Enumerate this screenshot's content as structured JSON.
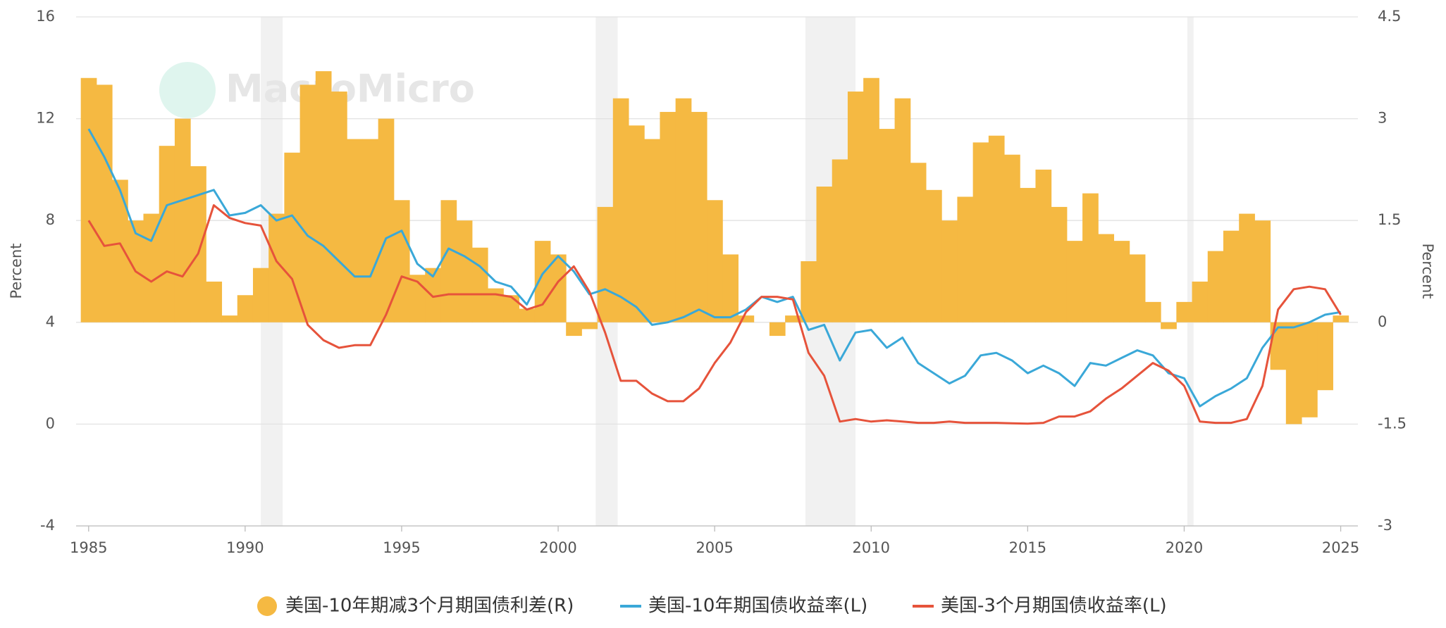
{
  "chart_data": {
    "type": "line",
    "watermark": "MacroMicro",
    "y_label": "Percent",
    "y2_label": "Percent",
    "xlim": [
      1984.6,
      2025.55
    ],
    "xticks": [
      1985,
      1990,
      1995,
      2000,
      2005,
      2010,
      2015,
      2020,
      2025
    ],
    "ylim": [
      -4,
      16
    ],
    "yticks": [
      -4,
      0,
      4,
      8,
      12,
      16
    ],
    "y2lim": [
      -3,
      4.5
    ],
    "y2ticks": [
      -3,
      -1.5,
      0,
      1.5,
      3,
      4.5
    ],
    "grid": true,
    "shaded_periods": [
      [
        1990.5,
        1991.2
      ],
      [
        2001.2,
        2001.9
      ],
      [
        2007.9,
        2009.5
      ],
      [
        2020.1,
        2020.3
      ]
    ],
    "x": [
      1985,
      1985.5,
      1986,
      1986.5,
      1987,
      1987.5,
      1988,
      1988.5,
      1989,
      1989.5,
      1990,
      1990.5,
      1991,
      1991.5,
      1992,
      1992.5,
      1993,
      1993.5,
      1994,
      1994.5,
      1995,
      1995.5,
      1996,
      1996.5,
      1997,
      1997.5,
      1998,
      1998.5,
      1999,
      1999.5,
      2000,
      2000.5,
      2001,
      2001.5,
      2002,
      2002.5,
      2003,
      2003.5,
      2004,
      2004.5,
      2005,
      2005.5,
      2006,
      2006.5,
      2007,
      2007.5,
      2008,
      2008.5,
      2009,
      2009.5,
      2010,
      2010.5,
      2011,
      2011.5,
      2012,
      2012.5,
      2013,
      2013.5,
      2014,
      2014.5,
      2015,
      2015.5,
      2016,
      2016.5,
      2017,
      2017.5,
      2018,
      2018.5,
      2019,
      2019.5,
      2020,
      2020.5,
      2021,
      2021.5,
      2022,
      2022.5,
      2023,
      2023.5,
      2024,
      2024.5,
      2025
    ],
    "series": [
      {
        "name": "美国-10年期减3个月期国债利差(R)",
        "type": "bar",
        "axis": "y2",
        "color": "#f5b942",
        "values": [
          3.6,
          3.5,
          2.1,
          1.5,
          1.6,
          2.6,
          3.0,
          2.3,
          0.6,
          0.1,
          0.4,
          0.8,
          1.6,
          2.5,
          3.5,
          3.7,
          3.4,
          2.7,
          2.7,
          3.0,
          1.8,
          0.7,
          0.8,
          1.8,
          1.5,
          1.1,
          0.5,
          0.4,
          0.2,
          1.2,
          1.0,
          -0.2,
          -0.1,
          1.7,
          3.3,
          2.9,
          2.7,
          3.1,
          3.3,
          3.1,
          1.8,
          1.0,
          0.1,
          0.0,
          -0.2,
          0.1,
          0.9,
          2.0,
          2.4,
          3.4,
          3.6,
          2.85,
          3.3,
          2.35,
          1.95,
          1.5,
          1.85,
          2.65,
          2.75,
          2.47,
          1.98,
          2.25,
          1.7,
          1.2,
          1.9,
          1.3,
          1.2,
          1.0,
          0.3,
          -0.1,
          0.3,
          0.6,
          1.05,
          1.35,
          1.6,
          1.5,
          -0.7,
          -1.5,
          -1.4,
          -1.0,
          0.1
        ]
      },
      {
        "name": "美国-10年期国债收益率(L)",
        "type": "line",
        "axis": "y",
        "color": "#3aa8d8",
        "values": [
          11.6,
          10.5,
          9.2,
          7.5,
          7.2,
          8.6,
          8.8,
          9.0,
          9.2,
          8.2,
          8.3,
          8.6,
          8.0,
          8.2,
          7.4,
          7.0,
          6.4,
          5.8,
          5.8,
          7.3,
          7.6,
          6.3,
          5.8,
          6.9,
          6.6,
          6.2,
          5.6,
          5.4,
          4.7,
          5.9,
          6.6,
          6.0,
          5.1,
          5.3,
          5.0,
          4.6,
          3.9,
          4.0,
          4.2,
          4.5,
          4.2,
          4.2,
          4.5,
          5.0,
          4.8,
          5.0,
          3.7,
          3.9,
          2.5,
          3.6,
          3.7,
          3.0,
          3.4,
          2.4,
          2.0,
          1.6,
          1.9,
          2.7,
          2.8,
          2.5,
          2.0,
          2.3,
          2.0,
          1.5,
          2.4,
          2.3,
          2.6,
          2.9,
          2.7,
          2.0,
          1.8,
          0.7,
          1.1,
          1.4,
          1.8,
          3.0,
          3.8,
          3.8,
          4.0,
          4.3,
          4.4
        ]
      },
      {
        "name": "美国-3个月期国债收益率(L)",
        "type": "line",
        "axis": "y",
        "color": "#e6533b",
        "values": [
          8.0,
          7.0,
          7.1,
          6.0,
          5.6,
          6.0,
          5.8,
          6.7,
          8.6,
          8.1,
          7.9,
          7.8,
          6.4,
          5.7,
          3.9,
          3.3,
          3.0,
          3.1,
          3.1,
          4.3,
          5.8,
          5.6,
          5.0,
          5.1,
          5.1,
          5.1,
          5.1,
          5.0,
          4.5,
          4.7,
          5.6,
          6.2,
          5.2,
          3.6,
          1.7,
          1.7,
          1.2,
          0.9,
          0.9,
          1.4,
          2.4,
          3.2,
          4.4,
          5.0,
          5.0,
          4.9,
          2.8,
          1.9,
          0.1,
          0.2,
          0.1,
          0.15,
          0.1,
          0.05,
          0.05,
          0.1,
          0.05,
          0.05,
          0.05,
          0.03,
          0.02,
          0.05,
          0.3,
          0.3,
          0.5,
          1.0,
          1.4,
          1.9,
          2.4,
          2.1,
          1.5,
          0.1,
          0.05,
          0.05,
          0.2,
          1.5,
          4.5,
          5.3,
          5.4,
          5.3,
          4.3
        ]
      }
    ]
  }
}
